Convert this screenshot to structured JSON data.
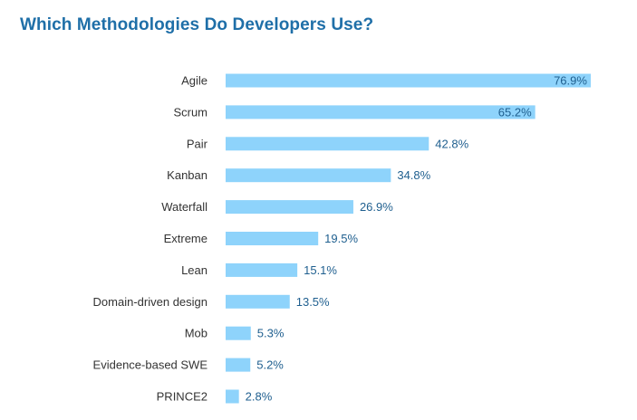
{
  "chart_data": {
    "type": "bar",
    "orientation": "horizontal",
    "title": "Which Methodologies Do Developers Use?",
    "categories": [
      "Agile",
      "Scrum",
      "Pair",
      "Kanban",
      "Waterfall",
      "Extreme",
      "Lean",
      "Domain-driven design",
      "Mob",
      "Evidence-based SWE",
      "PRINCE2"
    ],
    "values": [
      76.9,
      65.2,
      42.8,
      34.8,
      26.9,
      19.5,
      15.1,
      13.5,
      5.3,
      5.2,
      2.8
    ],
    "value_labels": [
      "76.9%",
      "65.2%",
      "42.8%",
      "34.8%",
      "26.9%",
      "19.5%",
      "15.1%",
      "13.5%",
      "5.3%",
      "5.2%",
      "2.8%"
    ],
    "value_unit": "%",
    "xlim": [
      0,
      100
    ],
    "grid": false,
    "legend": "none",
    "bar_color": "#8ed3fb",
    "label_color": "#1f5f8f",
    "title_color": "#1f6fa8"
  }
}
